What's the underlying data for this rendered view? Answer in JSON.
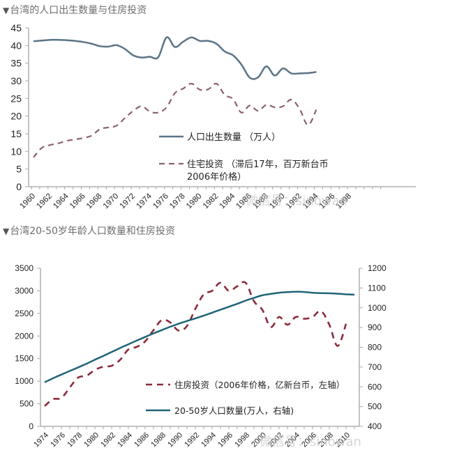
{
  "page": {
    "title1": "台湾的人口出生数量与住房投资",
    "title2": "台湾20-50岁年龄人口数量和住房投资",
    "title_marker": "▼",
    "watermark1": "微信号：sinowan",
    "watermark2": "微信号：sinowan"
  },
  "chart_data": [
    {
      "type": "line",
      "title": "台湾的人口出生数量与住房投资",
      "xlabel": "",
      "ylabel": "",
      "ylim": [
        0,
        45
      ],
      "yticks": [
        "0",
        "5",
        "10",
        "15",
        "20",
        "25",
        "30",
        "35",
        "40",
        "45"
      ],
      "xticks": [
        "1960",
        "1962",
        "1964",
        "1966",
        "1968",
        "1970",
        "1972",
        "1974",
        "1976",
        "1978",
        "1980",
        "1982",
        "1984",
        "1986",
        "1988",
        "1990",
        "1992",
        "1994",
        "1996",
        "1998"
      ],
      "x": [
        1960,
        1961,
        1962,
        1963,
        1964,
        1965,
        1966,
        1967,
        1968,
        1969,
        1970,
        1971,
        1972,
        1973,
        1974,
        1975,
        1976,
        1977,
        1978,
        1979,
        1980,
        1981,
        1982,
        1983,
        1984,
        1985,
        1986,
        1987,
        1988,
        1989,
        1990,
        1991,
        1992,
        1993,
        1994,
        1995,
        1996,
        1997,
        1998,
        1999
      ],
      "grid": false,
      "legend": "center-right",
      "series": [
        {
          "name": "人口出生数量 （万人）",
          "style": "solid",
          "color": "#5a7487",
          "values": [
            41.2,
            41.4,
            41.6,
            41.6,
            41.5,
            41.3,
            41.0,
            40.5,
            39.8,
            39.7,
            40.1,
            39.0,
            37.2,
            36.6,
            36.8,
            36.7,
            42.3,
            39.6,
            41.1,
            42.3,
            41.3,
            41.3,
            40.5,
            38.3,
            37.2,
            34.6,
            30.9,
            31.0,
            34.1,
            31.5,
            33.5,
            32.1,
            32.1,
            32.2,
            32.5,
            null,
            null,
            null,
            null,
            null
          ]
        },
        {
          "name": "住宅投资 （滞后17年，百万新台币，2006年价格）",
          "style": "dashed",
          "color": "#8a6070",
          "values": [
            8.3,
            11.0,
            11.8,
            12.3,
            13.0,
            13.4,
            13.8,
            14.5,
            16.3,
            16.8,
            17.3,
            19.5,
            21.5,
            22.8,
            21.3,
            21.0,
            22.5,
            26.5,
            27.8,
            29.2,
            27.5,
            27.6,
            29.2,
            26.0,
            24.8,
            21.0,
            23.0,
            21.5,
            23.2,
            22.5,
            22.8,
            24.7,
            22.0,
            17.5,
            21.8,
            null,
            null,
            null,
            null,
            null
          ]
        }
      ]
    },
    {
      "type": "line",
      "title": "台湾20-50岁年龄人口数量和住房投资",
      "xlabel": "",
      "ylabel_left": "",
      "ylabel_right": "",
      "ylim_left": [
        0,
        3500
      ],
      "ylim_right": [
        400,
        1200
      ],
      "yticks_left": [
        "0",
        "500",
        "1000",
        "1500",
        "2000",
        "2500",
        "3000",
        "3500"
      ],
      "yticks_right": [
        "400",
        "500",
        "600",
        "700",
        "800",
        "900",
        "1000",
        "1100",
        "1200"
      ],
      "xticks": [
        "1974",
        "1976",
        "1978",
        "1980",
        "1982",
        "1984",
        "1986",
        "1988",
        "1990",
        "1992",
        "1994",
        "1996",
        "1998",
        "2000",
        "2002",
        "2004",
        "2006",
        "2008",
        "2010"
      ],
      "x": [
        1974,
        1975,
        1976,
        1977,
        1978,
        1979,
        1980,
        1981,
        1982,
        1983,
        1984,
        1985,
        1986,
        1987,
        1988,
        1989,
        1990,
        1991,
        1992,
        1993,
        1994,
        1995,
        1996,
        1997,
        1998,
        1999,
        2000,
        2001,
        2002,
        2003,
        2004,
        2005,
        2006,
        2007,
        2008,
        2009,
        2010,
        2011
      ],
      "grid": false,
      "legend": "bottom-center",
      "series": [
        {
          "name": "住房投资（2006年价格，亿新台币，左轴）",
          "axis": "left",
          "style": "dashed",
          "color": "#8b2a3a",
          "values": [
            450,
            600,
            630,
            860,
            1080,
            1120,
            1250,
            1320,
            1340,
            1470,
            1700,
            1760,
            1880,
            2130,
            2350,
            2300,
            2120,
            2220,
            2600,
            2920,
            3000,
            3180,
            3000,
            3100,
            3180,
            2770,
            2580,
            2200,
            2420,
            2250,
            2420,
            2380,
            2420,
            2550,
            2250,
            1780,
            2270,
            null
          ]
        },
        {
          "name": "20-50岁人口数量(万人，右轴)",
          "axis": "right",
          "style": "solid",
          "color": "#1f6478",
          "values": [
            623,
            643,
            662,
            680,
            698,
            717,
            737,
            756,
            776,
            796,
            815,
            834,
            852,
            870,
            887,
            904,
            919,
            933,
            946,
            960,
            975,
            990,
            1005,
            1020,
            1036,
            1050,
            1063,
            1070,
            1076,
            1079,
            1081,
            1080,
            1076,
            1074,
            1073,
            1071,
            1068,
            1066
          ]
        }
      ]
    }
  ]
}
